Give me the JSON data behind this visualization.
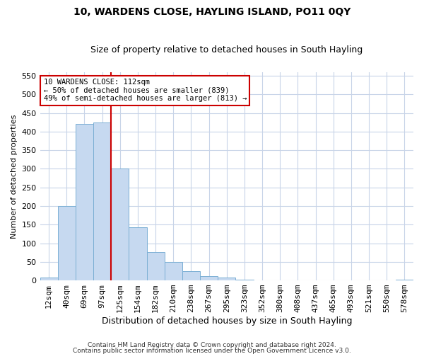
{
  "title": "10, WARDENS CLOSE, HAYLING ISLAND, PO11 0QY",
  "subtitle": "Size of property relative to detached houses in South Hayling",
  "xlabel": "Distribution of detached houses by size in South Hayling",
  "ylabel": "Number of detached properties",
  "categories": [
    "12sqm",
    "40sqm",
    "69sqm",
    "97sqm",
    "125sqm",
    "154sqm",
    "182sqm",
    "210sqm",
    "238sqm",
    "267sqm",
    "295sqm",
    "323sqm",
    "352sqm",
    "380sqm",
    "408sqm",
    "437sqm",
    "465sqm",
    "493sqm",
    "521sqm",
    "550sqm",
    "578sqm"
  ],
  "values": [
    8,
    200,
    420,
    425,
    300,
    143,
    77,
    49,
    24,
    12,
    8,
    2,
    0,
    0,
    0,
    0,
    0,
    0,
    0,
    0,
    3
  ],
  "bar_color": "#c6d9f0",
  "bar_edge_color": "#7bafd4",
  "vline_x": 3.5,
  "vline_color": "#cc0000",
  "ylim": [
    0,
    560
  ],
  "yticks": [
    0,
    50,
    100,
    150,
    200,
    250,
    300,
    350,
    400,
    450,
    500,
    550
  ],
  "annotation_line1": "10 WARDENS CLOSE: 112sqm",
  "annotation_line2": "← 50% of detached houses are smaller (839)",
  "annotation_line3": "49% of semi-detached houses are larger (813) →",
  "footer_line1": "Contains HM Land Registry data © Crown copyright and database right 2024.",
  "footer_line2": "Contains public sector information licensed under the Open Government Licence v3.0.",
  "background_color": "#ffffff",
  "grid_color": "#c8d4e8",
  "title_fontsize": 10,
  "subtitle_fontsize": 9,
  "xlabel_fontsize": 9,
  "ylabel_fontsize": 8,
  "tick_fontsize": 8,
  "annotation_fontsize": 7.5,
  "footer_fontsize": 6.5
}
